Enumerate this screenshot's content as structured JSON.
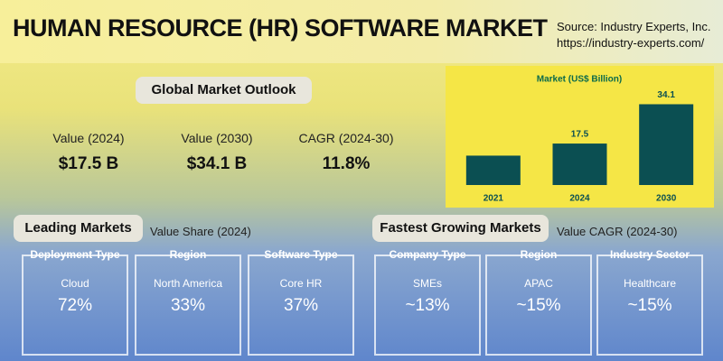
{
  "header": {
    "title": "HUMAN RESOURCE (HR) SOFTWARE MARKET",
    "source": "Source: Industry Experts, Inc.",
    "url": "https://industry-experts.com/"
  },
  "outlook": {
    "title": "Global Market Outlook",
    "items": [
      {
        "label": "Value (2024)",
        "value": "$17.5 B"
      },
      {
        "label": "Value (2030)",
        "value": "$34.1 B"
      },
      {
        "label": "CAGR (2024-30)",
        "value": "11.8%"
      }
    ]
  },
  "chart_data": {
    "type": "bar",
    "title": "Market (US$ Billion)",
    "categories": [
      "2021",
      "2024",
      "2030"
    ],
    "values": [
      12.4,
      17.5,
      34.1
    ],
    "value_labels": [
      null,
      "17.5",
      "34.1"
    ],
    "color": "#0b4f52",
    "ylim": [
      0,
      40
    ]
  },
  "leading": {
    "title": "Leading Markets",
    "subtitle": "Value Share (2024)",
    "cards": [
      {
        "heading": "Deployment Type",
        "name": "Cloud",
        "value": "72%"
      },
      {
        "heading": "Region",
        "name": "North America",
        "value": "33%"
      },
      {
        "heading": "Software Type",
        "name": "Core HR",
        "value": "37%"
      }
    ]
  },
  "fastest": {
    "title": "Fastest Growing Markets",
    "subtitle": "Value CAGR (2024-30)",
    "cards": [
      {
        "heading": "Company Type",
        "name": "SMEs",
        "value": "~13%"
      },
      {
        "heading": "Region",
        "name": "APAC",
        "value": "~15%"
      },
      {
        "heading": "Industry Sector",
        "name": "Healthcare",
        "value": "~15%"
      }
    ]
  }
}
